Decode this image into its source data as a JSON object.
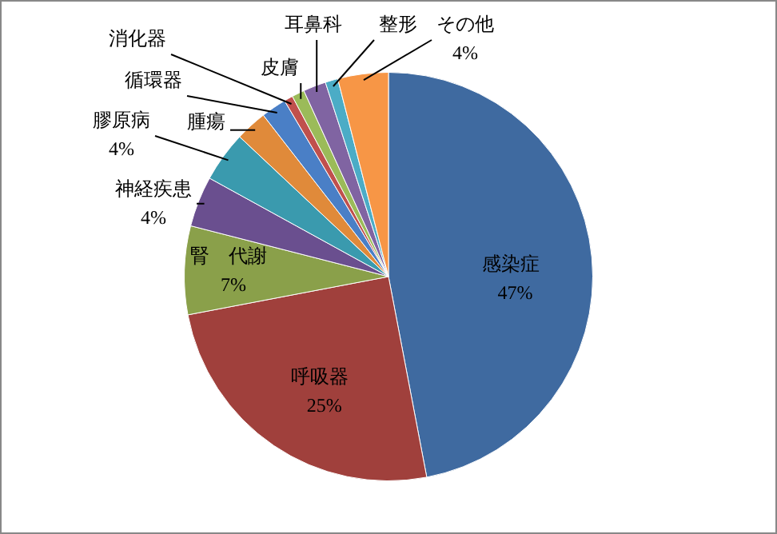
{
  "chart_data": {
    "type": "pie",
    "categories": [
      "感染症",
      "呼吸器",
      "腎　代謝",
      "神経疾患",
      "膠原病",
      "腫瘍",
      "循環器",
      "消化器",
      "皮膚",
      "耳鼻科",
      "整形",
      "その他"
    ],
    "values": [
      47,
      25,
      7,
      4,
      4,
      2.5,
      2,
      0.7,
      1,
      1.8,
      1,
      4
    ],
    "colors": [
      "#3f6aa0",
      "#a0403c",
      "#8aa04a",
      "#6a4f8f",
      "#3a9aae",
      "#e08a3a",
      "#4a7fc6",
      "#c0504d",
      "#9bbb59",
      "#8064a2",
      "#4bacc6",
      "#f79646"
    ],
    "value_labels": [
      "47%",
      "25%",
      "7%",
      "4%",
      "4%",
      null,
      null,
      null,
      null,
      null,
      null,
      "4%"
    ],
    "legend": false
  }
}
